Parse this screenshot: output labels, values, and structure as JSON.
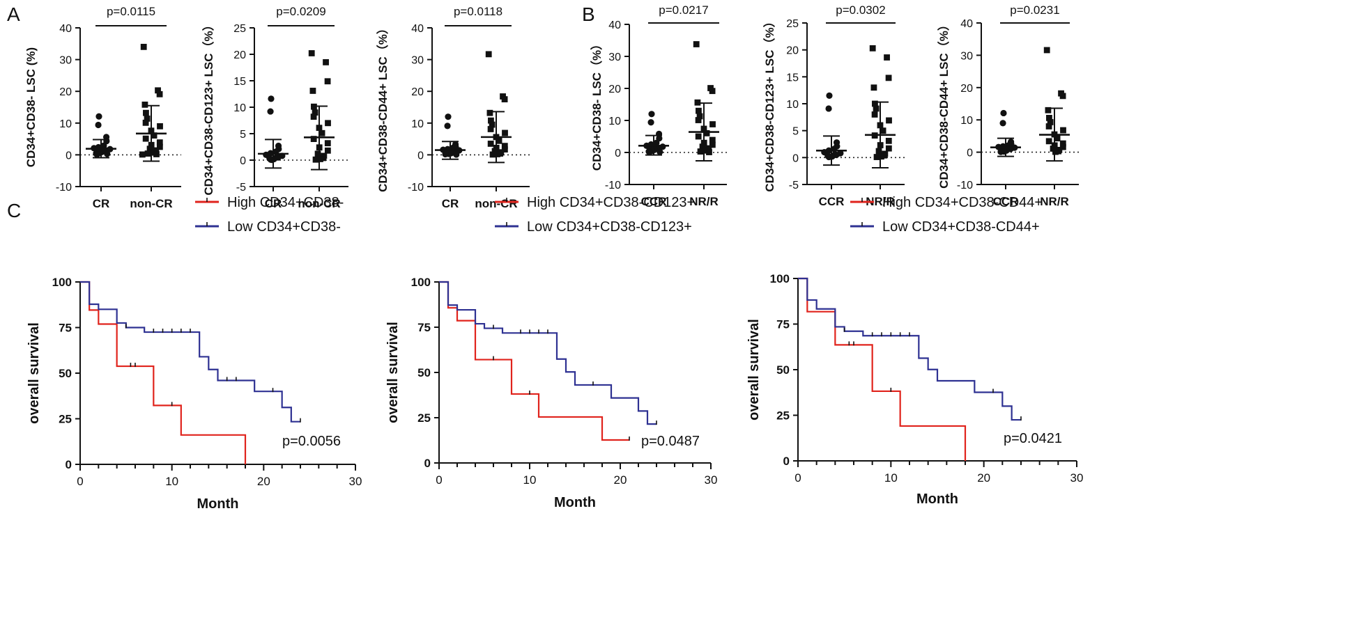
{
  "panel_labels": {
    "a": "A",
    "b": "B",
    "c": "C"
  },
  "colors": {
    "axis": "#111111",
    "high": "#e0231c",
    "low": "#2e3192",
    "points": "#111111",
    "ref": "#222222"
  },
  "chart_data": [
    {
      "id": "A1",
      "type": "scatter",
      "ylabel": "CD34+CD38- LSC (%)",
      "categories": [
        "CR",
        "non-CR"
      ],
      "ylim": [
        -10,
        40
      ],
      "yticks": [
        -10,
        0,
        10,
        20,
        30,
        40
      ],
      "p_value": "p=0.0115",
      "marker": "circle-square",
      "groups": [
        {
          "name": "CR",
          "mean": 1.9,
          "sd_low": -0.9,
          "sd_high": 4.8,
          "points": [
            12.1,
            9.4,
            5.6,
            4.3,
            2.9,
            2.4,
            2.1,
            1.8,
            1.6,
            1.4,
            1.2,
            1.0,
            0.9,
            0.8,
            0.6,
            0.5,
            0.3,
            0.2,
            0.1
          ]
        },
        {
          "name": "non-CR",
          "mean": 6.7,
          "sd_low": -2.0,
          "sd_high": 15.5,
          "points": [
            34.0,
            20.3,
            19.1,
            15.8,
            13.2,
            11.4,
            10.1,
            9.0,
            7.6,
            6.1,
            5.1,
            3.9,
            3.1,
            2.5,
            1.9,
            1.4,
            1.0,
            0.7,
            0.4,
            0.2,
            0.1
          ]
        }
      ]
    },
    {
      "id": "A2",
      "type": "scatter",
      "ylabel": "CD34+CD38-CD123+ LSC（%）",
      "categories": [
        "CR",
        "non-CR"
      ],
      "ylim": [
        -5,
        25
      ],
      "yticks": [
        -5,
        0,
        5,
        10,
        15,
        20,
        25
      ],
      "p_value": "p=0.0209",
      "marker": "circle-square",
      "groups": [
        {
          "name": "CR",
          "mean": 1.2,
          "sd_low": -1.5,
          "sd_high": 3.9,
          "points": [
            11.6,
            9.2,
            2.7,
            2.1,
            1.6,
            1.3,
            1.0,
            0.8,
            0.6,
            0.5,
            0.4,
            0.3,
            0.2,
            0.1,
            0.05
          ]
        },
        {
          "name": "non-CR",
          "mean": 4.3,
          "sd_low": -1.8,
          "sd_high": 10.2,
          "points": [
            20.2,
            18.5,
            14.9,
            13.1,
            10.1,
            9.0,
            8.2,
            7.0,
            6.1,
            5.1,
            4.0,
            3.2,
            2.4,
            1.8,
            1.2,
            0.8,
            0.4,
            0.2,
            0.1
          ]
        }
      ]
    },
    {
      "id": "A3",
      "type": "scatter",
      "ylabel": "CD34+CD38-CD44+ LSC（%）",
      "categories": [
        "CR",
        "non-CR"
      ],
      "ylim": [
        -10,
        40
      ],
      "yticks": [
        -10,
        0,
        10,
        20,
        30,
        40
      ],
      "p_value": "p=0.0118",
      "marker": "circle-square",
      "groups": [
        {
          "name": "CR",
          "mean": 1.5,
          "sd_low": -1.4,
          "sd_high": 4.2,
          "points": [
            12.0,
            9.1,
            3.3,
            2.6,
            2.2,
            1.8,
            1.6,
            1.4,
            1.2,
            1.0,
            0.9,
            0.7,
            0.5,
            0.4,
            0.3,
            0.2,
            0.1
          ]
        },
        {
          "name": "non-CR",
          "mean": 5.6,
          "sd_low": -2.4,
          "sd_high": 13.6,
          "points": [
            31.7,
            18.4,
            17.5,
            13.2,
            10.8,
            9.5,
            8.1,
            6.9,
            5.6,
            4.4,
            3.5,
            2.8,
            2.2,
            1.7,
            1.2,
            0.8,
            0.4,
            0.2,
            0.1
          ]
        }
      ]
    },
    {
      "id": "B1",
      "type": "scatter",
      "ylabel": "CD34+CD38- LSC（%）",
      "categories": [
        "CCR",
        "NR/R"
      ],
      "ylim": [
        -10,
        40
      ],
      "yticks": [
        -10,
        0,
        10,
        20,
        30,
        40
      ],
      "p_value": "p=0.0217",
      "marker": "circle-square",
      "groups": [
        {
          "name": "CCR",
          "mean": 2.1,
          "sd_low": -0.8,
          "sd_high": 5.3,
          "points": [
            12.0,
            9.4,
            5.8,
            4.4,
            3.0,
            2.5,
            2.1,
            1.8,
            1.6,
            1.4,
            1.2,
            1.0,
            0.9,
            0.7,
            0.5,
            0.3,
            0.2,
            0.1
          ]
        },
        {
          "name": "NR/R",
          "mean": 6.4,
          "sd_low": -2.6,
          "sd_high": 15.4,
          "points": [
            33.8,
            20.1,
            19.2,
            15.6,
            13.0,
            11.3,
            10.1,
            8.8,
            7.4,
            6.0,
            5.0,
            3.9,
            3.0,
            2.4,
            1.8,
            1.3,
            0.9,
            0.6,
            0.3,
            0.1
          ]
        }
      ]
    },
    {
      "id": "B2",
      "type": "scatter",
      "ylabel": "CD34+CD38-CD123+ LSC（%）",
      "categories": [
        "CCR",
        "NR/R"
      ],
      "ylim": [
        -5,
        25
      ],
      "yticks": [
        -5,
        0,
        5,
        10,
        15,
        20,
        25
      ],
      "p_value": "p=0.0302",
      "marker": "circle-square",
      "groups": [
        {
          "name": "CCR",
          "mean": 1.3,
          "sd_low": -1.4,
          "sd_high": 4.0,
          "points": [
            11.5,
            9.1,
            2.8,
            2.1,
            1.6,
            1.3,
            1.0,
            0.8,
            0.6,
            0.5,
            0.4,
            0.3,
            0.2,
            0.1
          ]
        },
        {
          "name": "NR/R",
          "mean": 4.2,
          "sd_low": -1.9,
          "sd_high": 10.3,
          "points": [
            20.3,
            18.6,
            14.8,
            13.0,
            10.0,
            9.1,
            8.0,
            6.9,
            6.0,
            5.0,
            4.1,
            3.1,
            2.3,
            1.7,
            1.2,
            0.7,
            0.4,
            0.2,
            0.1
          ]
        }
      ]
    },
    {
      "id": "B3",
      "type": "scatter",
      "ylabel": "CD34+CD38-CD44+ LSC（%）",
      "categories": [
        "CCR",
        "NR/R"
      ],
      "ylim": [
        -10,
        40
      ],
      "yticks": [
        -10,
        0,
        10,
        20,
        30,
        40
      ],
      "p_value": "p=0.0231",
      "marker": "circle-square",
      "groups": [
        {
          "name": "CCR",
          "mean": 1.5,
          "sd_low": -1.3,
          "sd_high": 4.3,
          "points": [
            12.1,
            9.0,
            3.2,
            2.6,
            2.1,
            1.8,
            1.6,
            1.4,
            1.2,
            1.0,
            0.8,
            0.6,
            0.5,
            0.3,
            0.2,
            0.1
          ]
        },
        {
          "name": "NR/R",
          "mean": 5.4,
          "sd_low": -2.7,
          "sd_high": 13.6,
          "points": [
            31.6,
            18.2,
            17.4,
            13.0,
            10.6,
            9.3,
            8.0,
            6.8,
            5.5,
            4.3,
            3.4,
            2.7,
            2.1,
            1.6,
            1.1,
            0.7,
            0.3,
            0.1
          ]
        }
      ]
    },
    {
      "id": "C1",
      "type": "line",
      "xlabel": "Month",
      "ylabel": "overall survival",
      "xlim": [
        0,
        30
      ],
      "ylim": [
        0,
        100
      ],
      "xticks": [
        0,
        10,
        20,
        30
      ],
      "yticks": [
        0,
        25,
        50,
        75,
        100
      ],
      "p_value": "p=0.0056",
      "series": [
        {
          "name": "High CD34+CD38-",
          "color_key": "high",
          "steps": [
            [
              0,
              100
            ],
            [
              1,
              84.6
            ],
            [
              2,
              76.9
            ],
            [
              4,
              53.8
            ],
            [
              8,
              32.3
            ],
            [
              11,
              16.1
            ],
            [
              18,
              0
            ],
            [
              18,
              0
            ]
          ],
          "censors": [
            [
              5.5,
              53.8
            ],
            [
              6,
              53.8
            ],
            [
              10,
              32.3
            ]
          ]
        },
        {
          "name": "Low CD34+CD38-",
          "color_key": "low",
          "steps": [
            [
              0,
              100
            ],
            [
              1,
              87.8
            ],
            [
              2,
              85
            ],
            [
              4,
              77.5
            ],
            [
              5,
              75
            ],
            [
              7,
              72.5
            ],
            [
              13,
              59
            ],
            [
              14,
              52
            ],
            [
              15,
              46
            ],
            [
              19,
              40
            ],
            [
              22,
              31.2
            ],
            [
              23,
              23.4
            ],
            [
              24,
              23.4
            ]
          ],
          "censors": [
            [
              5,
              75
            ],
            [
              8,
              72.5
            ],
            [
              9,
              72.5
            ],
            [
              10,
              72.5
            ],
            [
              11,
              72.5
            ],
            [
              12,
              72.5
            ],
            [
              16,
              46
            ],
            [
              17,
              46
            ],
            [
              21,
              40
            ],
            [
              24,
              23.4
            ]
          ]
        }
      ]
    },
    {
      "id": "C2",
      "type": "line",
      "xlabel": "Month",
      "ylabel": "overall survival",
      "xlim": [
        0,
        30
      ],
      "ylim": [
        0,
        100
      ],
      "xticks": [
        0,
        10,
        20,
        30
      ],
      "yticks": [
        0,
        25,
        50,
        75,
        100
      ],
      "p_value": "p=0.0487",
      "series": [
        {
          "name": "High CD34+CD38-CD123+",
          "color_key": "high",
          "steps": [
            [
              0,
              100
            ],
            [
              1,
              85.7
            ],
            [
              2,
              78.6
            ],
            [
              4,
              57.1
            ],
            [
              8,
              38.1
            ],
            [
              11,
              25.4
            ],
            [
              18,
              12.7
            ],
            [
              21,
              12.7
            ]
          ],
          "censors": [
            [
              6,
              57.1
            ],
            [
              10,
              38.1
            ],
            [
              21,
              12.7
            ]
          ]
        },
        {
          "name": "Low CD34+CD38-CD123+",
          "color_key": "low",
          "steps": [
            [
              0,
              100
            ],
            [
              1,
              87.2
            ],
            [
              2,
              84.6
            ],
            [
              4,
              76.9
            ],
            [
              5,
              74.4
            ],
            [
              7,
              71.8
            ],
            [
              13,
              57.4
            ],
            [
              14,
              50.3
            ],
            [
              15,
              43.1
            ],
            [
              19,
              35.9
            ],
            [
              22,
              28.7
            ],
            [
              23,
              21.5
            ],
            [
              24,
              21.5
            ]
          ],
          "censors": [
            [
              6,
              74.4
            ],
            [
              9,
              71.8
            ],
            [
              10,
              71.8
            ],
            [
              11,
              71.8
            ],
            [
              12,
              71.8
            ],
            [
              17,
              43.1
            ],
            [
              24,
              21.5
            ]
          ]
        }
      ]
    },
    {
      "id": "C3",
      "type": "line",
      "xlabel": "Month",
      "ylabel": "overall survival",
      "xlim": [
        0,
        30
      ],
      "ylim": [
        0,
        100
      ],
      "xticks": [
        0,
        10,
        20,
        30
      ],
      "yticks": [
        0,
        25,
        50,
        75,
        100
      ],
      "p_value": "p=0.0421",
      "series": [
        {
          "name": "High CD34+CD38-CD44+",
          "color_key": "high",
          "steps": [
            [
              0,
              100
            ],
            [
              1,
              81.8
            ],
            [
              4,
              63.6
            ],
            [
              8,
              38.2
            ],
            [
              11,
              19.1
            ],
            [
              18,
              0
            ],
            [
              18,
              0
            ]
          ],
          "censors": [
            [
              5.5,
              63.6
            ],
            [
              6,
              63.6
            ],
            [
              10,
              38.2
            ]
          ]
        },
        {
          "name": "Low CD34+CD38-CD44+",
          "color_key": "low",
          "steps": [
            [
              0,
              100
            ],
            [
              1,
              88.2
            ],
            [
              2,
              83.3
            ],
            [
              4,
              73.5
            ],
            [
              5,
              71.1
            ],
            [
              7,
              68.6
            ],
            [
              13,
              56.3
            ],
            [
              14,
              50.1
            ],
            [
              15,
              43.9
            ],
            [
              19,
              37.6
            ],
            [
              22,
              30
            ],
            [
              23,
              22.5
            ],
            [
              24,
              22.5
            ]
          ],
          "censors": [
            [
              5,
              71.1
            ],
            [
              8,
              68.6
            ],
            [
              9,
              68.6
            ],
            [
              10,
              68.6
            ],
            [
              11,
              68.6
            ],
            [
              12,
              68.6
            ],
            [
              21,
              37.6
            ],
            [
              24,
              22.5
            ]
          ]
        }
      ]
    }
  ]
}
